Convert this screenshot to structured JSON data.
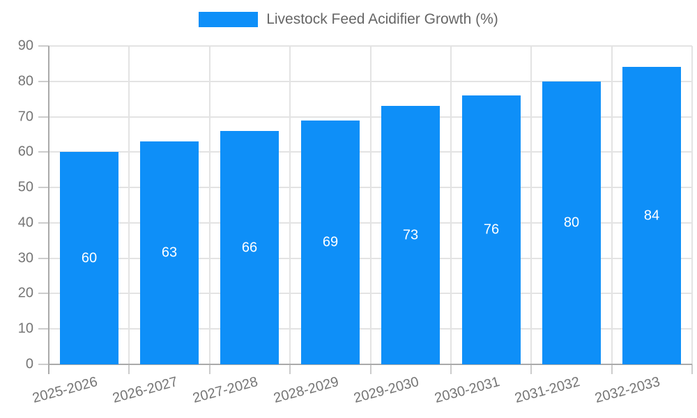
{
  "chart_data": {
    "type": "bar",
    "title": "Livestock Feed Acidifier Growth (%)",
    "categories": [
      "2025-2026",
      "2026-2027",
      "2027-2028",
      "2028-2029",
      "2029-2030",
      "2030-2031",
      "2031-2032",
      "2032-2033"
    ],
    "values": [
      60,
      63,
      66,
      69,
      73,
      76,
      80,
      84
    ],
    "xlabel": "",
    "ylabel": "",
    "ylim": [
      0,
      90
    ],
    "ytick_step": 10,
    "yticks": [
      0,
      10,
      20,
      30,
      40,
      50,
      60,
      70,
      80,
      90
    ],
    "grid": true,
    "legend_position": "top",
    "bar_label_position": "inside-center"
  },
  "colors": {
    "bar": "#0e8ff8",
    "grid": "#e3e3e3",
    "axis": "#aaaaaa",
    "tick": "#cccccc",
    "tick_label": "#757575",
    "legend_text": "#666666",
    "bar_label": "#ffffff"
  }
}
